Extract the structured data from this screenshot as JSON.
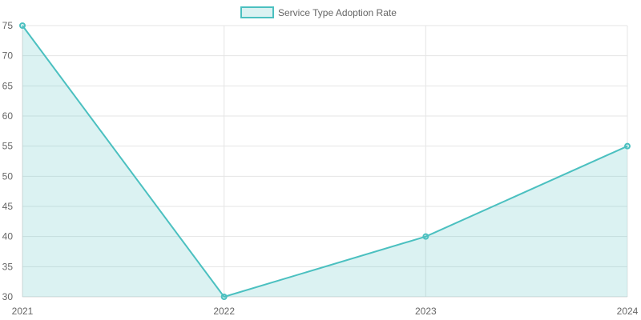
{
  "chart_data": {
    "type": "area",
    "categories": [
      "2021",
      "2022",
      "2023",
      "2024"
    ],
    "series": [
      {
        "name": "Service Type Adoption Rate",
        "values": [
          75,
          30,
          40,
          55
        ],
        "color": "#4bc0c0",
        "fill_color": "rgba(75, 192, 192, 0.2)"
      }
    ],
    "ylim": [
      30,
      75
    ],
    "yticks": [
      30,
      35,
      40,
      45,
      50,
      55,
      60,
      65,
      70,
      75
    ],
    "grid": true,
    "legend_position": "top-center",
    "title": "",
    "xlabel": "",
    "ylabel": ""
  }
}
